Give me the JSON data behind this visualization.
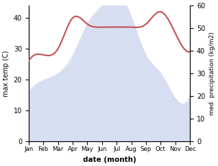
{
  "months": [
    "Jan",
    "Feb",
    "Mar",
    "Apr",
    "May",
    "Jun",
    "Jul",
    "Aug",
    "Sep",
    "Oct",
    "Nov",
    "Dec"
  ],
  "temp_C": [
    26,
    28,
    30,
    40,
    38,
    37,
    37,
    37,
    38,
    42,
    35,
    29
  ],
  "precip_kg": [
    22,
    27,
    30,
    38,
    52,
    60,
    65,
    55,
    38,
    30,
    19,
    20
  ],
  "temp_color": "#c0504d",
  "precip_color": "#b8c4e8",
  "left_ylabel": "max temp (C)",
  "right_ylabel": "med. precipitation (kg/m2)",
  "xlabel": "date (month)",
  "left_ylim": [
    0,
    44
  ],
  "right_ylim": [
    0,
    60
  ],
  "left_yticks": [
    0,
    10,
    20,
    30,
    40
  ],
  "right_yticks": [
    0,
    10,
    20,
    30,
    40,
    50,
    60
  ],
  "background_color": "#ffffff"
}
